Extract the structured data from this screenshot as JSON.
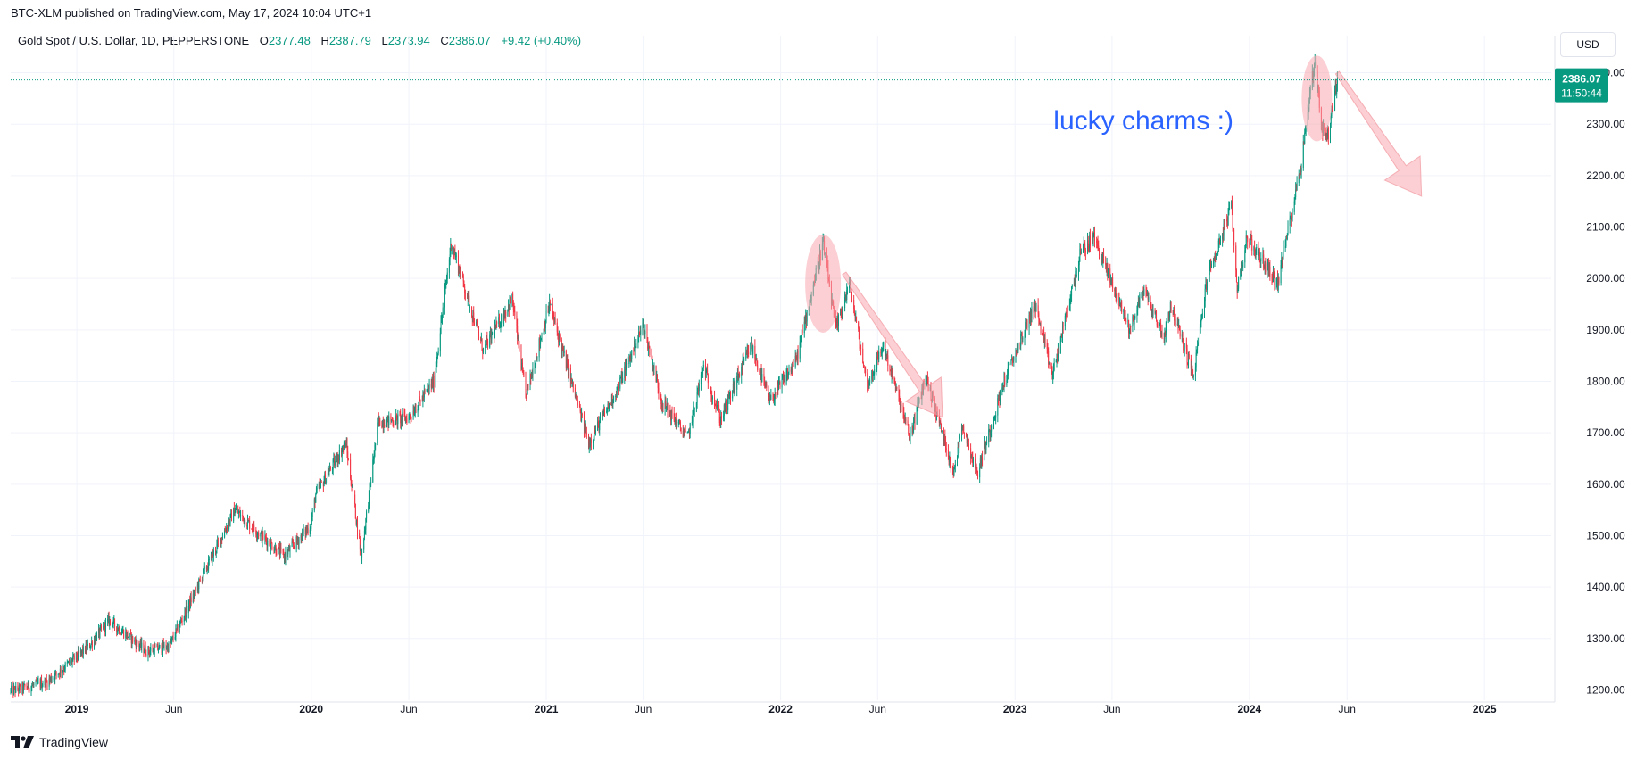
{
  "header": {
    "published_line": "BTC-XLM published on TradingView.com, May 17, 2024 10:04 UTC+1"
  },
  "legend": {
    "symbol": "Gold Spot / U.S. Dollar, 1D, PEPPERSTONE",
    "open_label": "O",
    "open": "2377.48",
    "high_label": "H",
    "high": "2387.79",
    "low_label": "L",
    "low": "2373.94",
    "close_label": "C",
    "close": "2386.07",
    "change": "+9.42 (+0.40%)"
  },
  "currency_button": "USD",
  "price_tag": {
    "price": "2386.07",
    "countdown": "11:50:44"
  },
  "annotation_text": "lucky charms :)",
  "footer": {
    "brand": "TradingView"
  },
  "colors": {
    "up": "#089981",
    "down": "#f23645",
    "annotation_text": "#2962ff",
    "highlight": "#f7a8ae",
    "price_line": "#089981",
    "grid": "#f0f3fa"
  },
  "icons": {
    "footer_logo": "tradingview-logo-icon"
  },
  "chart_data": {
    "type": "candlestick",
    "symbol": "Gold Spot / U.S. Dollar",
    "timeframe": "1D",
    "ylim": [
      1180,
      2420
    ],
    "y_ticks": [
      "1200.00",
      "1300.00",
      "1400.00",
      "1500.00",
      "1600.00",
      "1700.00",
      "1800.00",
      "1900.00",
      "2000.00",
      "2100.00",
      "2200.00",
      "2300.00",
      "2400.00"
    ],
    "x_ticks": [
      {
        "label": "2019",
        "date": "2019-01-01"
      },
      {
        "label": "Jun",
        "date": "2019-06-01"
      },
      {
        "label": "2020",
        "date": "2020-01-01"
      },
      {
        "label": "Jun",
        "date": "2020-06-01"
      },
      {
        "label": "2021",
        "date": "2021-01-01"
      },
      {
        "label": "Jun",
        "date": "2021-06-01"
      },
      {
        "label": "2022",
        "date": "2022-01-01"
      },
      {
        "label": "Jun",
        "date": "2022-06-01"
      },
      {
        "label": "2023",
        "date": "2023-01-01"
      },
      {
        "label": "Jun",
        "date": "2023-06-01"
      },
      {
        "label": "2024",
        "date": "2024-01-01"
      },
      {
        "label": "Jun",
        "date": "2024-06-01"
      },
      {
        "label": "2025",
        "date": "2025-01-01"
      }
    ],
    "x_range": [
      "2018-09-20",
      "2025-04-15"
    ],
    "price_path": [
      [
        "2018-09-20",
        1198
      ],
      [
        "2018-11-15",
        1215
      ],
      [
        "2019-01-20",
        1285
      ],
      [
        "2019-02-20",
        1335
      ],
      [
        "2019-04-20",
        1275
      ],
      [
        "2019-05-25",
        1285
      ],
      [
        "2019-07-15",
        1420
      ],
      [
        "2019-09-04",
        1550
      ],
      [
        "2019-10-15",
        1500
      ],
      [
        "2019-11-20",
        1460
      ],
      [
        "2019-12-31",
        1520
      ],
      [
        "2020-01-08",
        1580
      ],
      [
        "2020-02-24",
        1680
      ],
      [
        "2020-03-19",
        1460
      ],
      [
        "2020-04-14",
        1720
      ],
      [
        "2020-06-01",
        1730
      ],
      [
        "2020-07-10",
        1800
      ],
      [
        "2020-08-06",
        2070
      ],
      [
        "2020-09-25",
        1860
      ],
      [
        "2020-11-09",
        1960
      ],
      [
        "2020-11-30",
        1770
      ],
      [
        "2021-01-06",
        1950
      ],
      [
        "2021-03-08",
        1680
      ],
      [
        "2021-04-20",
        1780
      ],
      [
        "2021-06-01",
        1910
      ],
      [
        "2021-06-30",
        1760
      ],
      [
        "2021-08-09",
        1690
      ],
      [
        "2021-09-03",
        1830
      ],
      [
        "2021-09-29",
        1725
      ],
      [
        "2021-11-16",
        1870
      ],
      [
        "2021-12-15",
        1760
      ],
      [
        "2022-01-25",
        1840
      ],
      [
        "2022-03-08",
        2070
      ],
      [
        "2022-03-28",
        1900
      ],
      [
        "2022-04-18",
        1990
      ],
      [
        "2022-05-16",
        1790
      ],
      [
        "2022-06-10",
        1870
      ],
      [
        "2022-07-21",
        1690
      ],
      [
        "2022-08-15",
        1810
      ],
      [
        "2022-09-28",
        1620
      ],
      [
        "2022-10-10",
        1720
      ],
      [
        "2022-11-03",
        1620
      ],
      [
        "2022-12-15",
        1800
      ],
      [
        "2023-02-01",
        1950
      ],
      [
        "2023-02-28",
        1810
      ],
      [
        "2023-04-13",
        2050
      ],
      [
        "2023-05-04",
        2080
      ],
      [
        "2023-06-29",
        1900
      ],
      [
        "2023-07-20",
        1980
      ],
      [
        "2023-08-21",
        1885
      ],
      [
        "2023-08-31",
        1950
      ],
      [
        "2023-10-06",
        1810
      ],
      [
        "2023-10-27",
        2000
      ],
      [
        "2023-12-04",
        2140
      ],
      [
        "2023-12-13",
        1980
      ],
      [
        "2023-12-28",
        2080
      ],
      [
        "2024-02-14",
        1990
      ],
      [
        "2024-03-21",
        2220
      ],
      [
        "2024-04-12",
        2430
      ],
      [
        "2024-04-23",
        2290
      ],
      [
        "2024-05-03",
        2280
      ],
      [
        "2024-05-17",
        2386
      ]
    ],
    "last_candle": {
      "open": 2377.48,
      "high": 2387.79,
      "low": 2373.94,
      "close": 2386.07
    },
    "last_price": 2386.07,
    "annotations": [
      {
        "kind": "ellipse",
        "date": "2022-03-08",
        "price": 1990
      },
      {
        "kind": "ellipse",
        "date": "2024-04-15",
        "price": 2350
      },
      {
        "kind": "arrow",
        "from": [
          "2022-04-10",
          2010
        ],
        "to": [
          "2022-09-10",
          1730
        ]
      },
      {
        "kind": "arrow",
        "from": [
          "2024-05-17",
          2400
        ],
        "to": [
          "2024-09-25",
          2160
        ]
      },
      {
        "kind": "text",
        "date": "2023-07-20",
        "price": 2290
      }
    ]
  }
}
